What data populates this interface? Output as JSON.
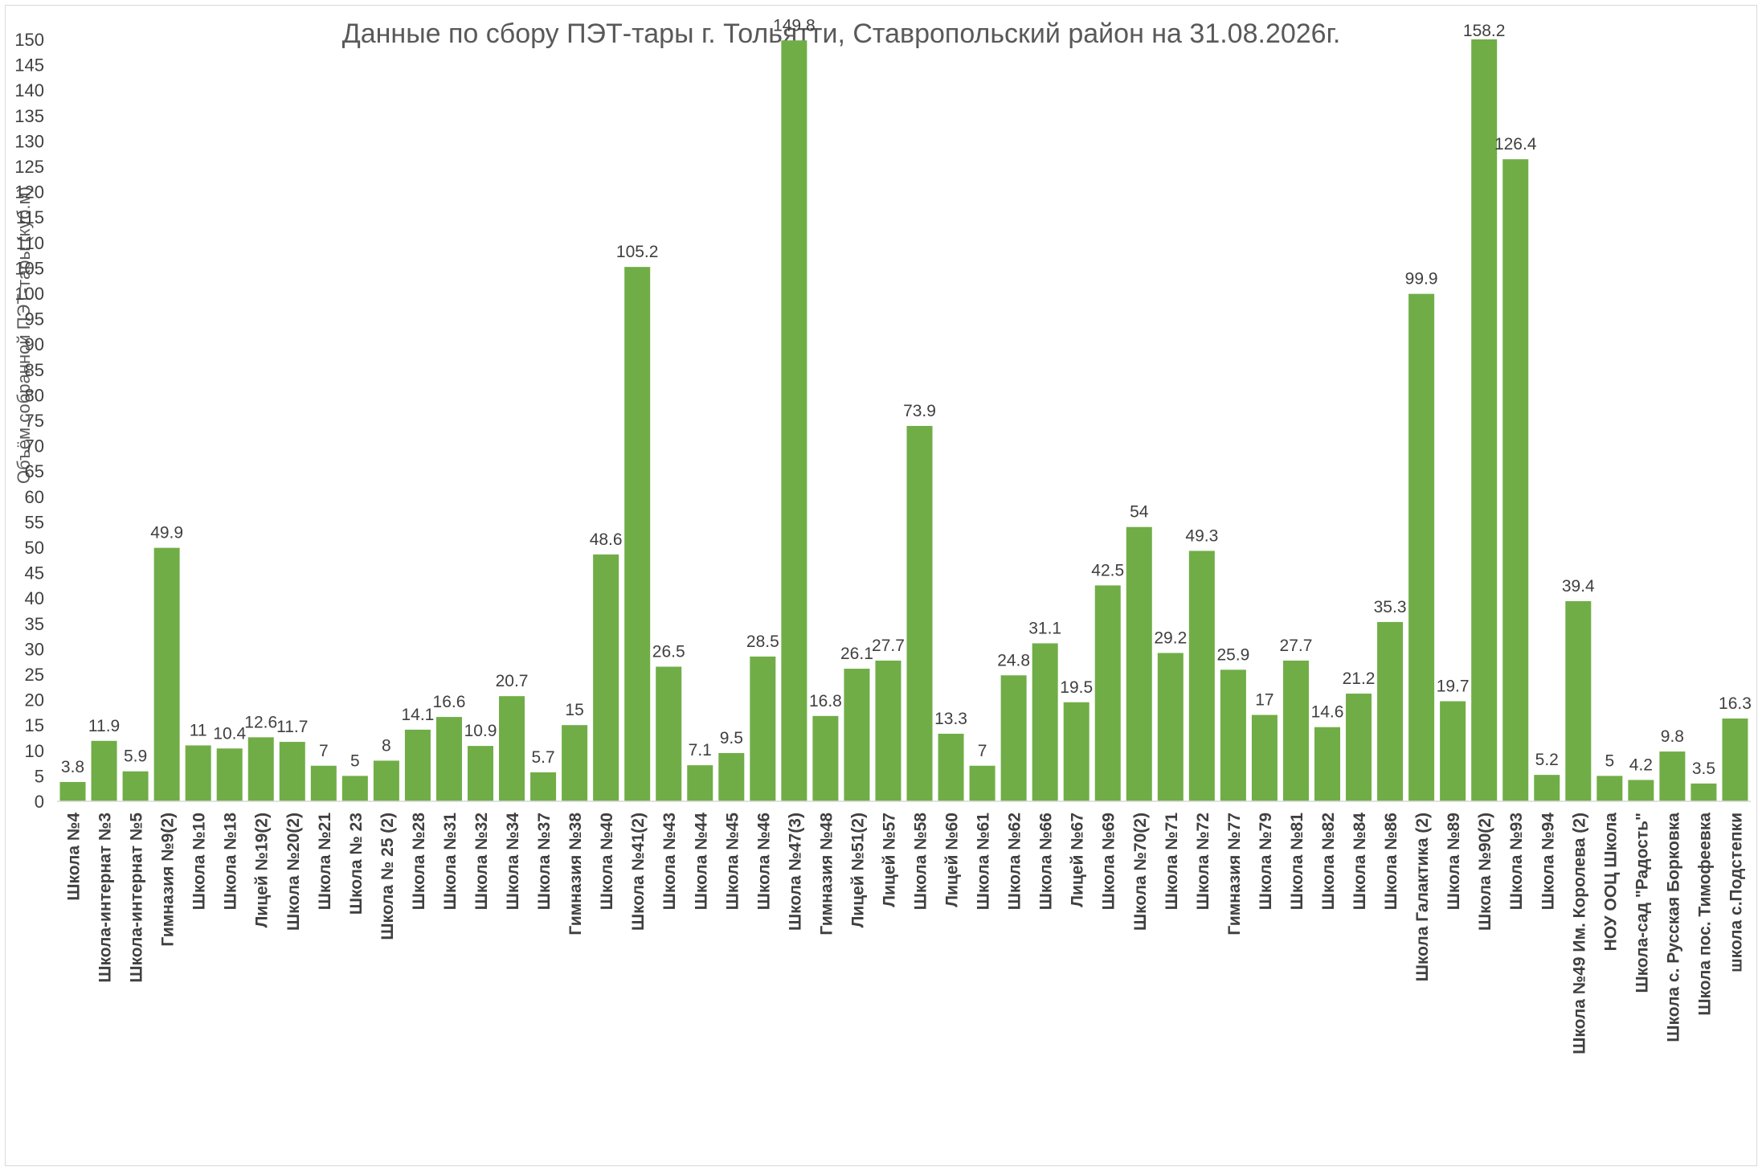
{
  "chart_data": {
    "type": "bar",
    "title": "Данные по сбору ПЭТ-тары г. Тольятти, Ставропольский район на 31.08.2026г.",
    "xlabel": "",
    "ylabel": "Объём собранной ПЭТ-тары (куб.м)",
    "ylim": [
      0,
      150
    ],
    "yticks": [
      0,
      5,
      10,
      15,
      20,
      25,
      30,
      35,
      40,
      45,
      50,
      55,
      60,
      65,
      70,
      75,
      80,
      85,
      90,
      95,
      100,
      105,
      110,
      115,
      120,
      125,
      130,
      135,
      140,
      145,
      150
    ],
    "grid": false,
    "legend": "none",
    "bar_color": "#70ad47",
    "categories": [
      "Школа №4",
      "Школа-интернат №3",
      "Школа-интернат №5",
      "Гимназия №9(2)",
      "Школа №10",
      "Школа №18",
      "Лицей №19(2)",
      "Школа №20(2)",
      "Школа №21",
      "Школа № 23",
      "Школа № 25 (2)",
      "Школа №28",
      "Школа №31",
      "Школа №32",
      "Школа №34",
      "Школа №37",
      "Гимназия №38",
      "Школа №40",
      "Школа №41(2)",
      "Школа №43",
      "Школа №44",
      "Школа №45",
      "Школа №46",
      "Школа №47(3)",
      "Гимназия №48",
      "Лицей №51(2)",
      "Лицей №57",
      "Школа №58",
      "Лицей №60",
      "Школа №61",
      "Школа №62",
      "Школа №66",
      "Лицей №67",
      "Школа №69",
      "Школа №70(2)",
      "Школа №71",
      "Школа №72",
      "Гимназия №77",
      "Школа №79",
      "Школа №81",
      "Школа №82",
      "Школа №84",
      "Школа №86",
      "Школа Галактика (2)",
      "Школа №89",
      "Школа №90(2)",
      "Школа №93",
      "Школа №94",
      "Школа №49 Им. Королева (2)",
      "НОУ ООЦ Школа",
      "Школа-сад \"Радость\"",
      "Школа с. Русская Борковка",
      "Школа пос. Тимофеевка",
      "школа с.Подстепки"
    ],
    "values": [
      3.8,
      11.9,
      5.9,
      49.9,
      11,
      10.4,
      12.6,
      11.7,
      7,
      5,
      8,
      14.1,
      16.6,
      10.9,
      20.7,
      5.7,
      15,
      48.6,
      105.2,
      26.5,
      7.1,
      9.5,
      28.5,
      149.8,
      16.8,
      26.1,
      27.7,
      73.9,
      13.3,
      7,
      24.8,
      31.1,
      19.5,
      42.5,
      54,
      29.2,
      49.3,
      25.9,
      17,
      27.7,
      14.6,
      21.2,
      35.3,
      99.9,
      19.7,
      158.2,
      126.4,
      5.2,
      39.4,
      5,
      4.2,
      9.8,
      3.5,
      16.3
    ],
    "data_labels": [
      "3.8",
      "11.9",
      "5.9",
      "49.9",
      "11",
      "10.4",
      "12.6",
      "11.7",
      "7",
      "5",
      "8",
      "14.1",
      "16.6",
      "10.9",
      "20.7",
      "5.7",
      "15",
      "48.6",
      "105.2",
      "26.5",
      "7.1",
      "9.5",
      "28.5",
      "149.8",
      "16.8",
      "26.1",
      "27.7",
      "73.9",
      "13.3",
      "7",
      "24.8",
      "31.1",
      "19.5",
      "42.5",
      "54",
      "29.2",
      "49.3",
      "25.9",
      "17",
      "27.7",
      "14.6",
      "21.2",
      "35.3",
      "99.9",
      "19.7",
      "158.2",
      "126.4",
      "5.2",
      "39.4",
      "5",
      "4.2",
      "9.8",
      "3.5",
      "16.3"
    ]
  }
}
